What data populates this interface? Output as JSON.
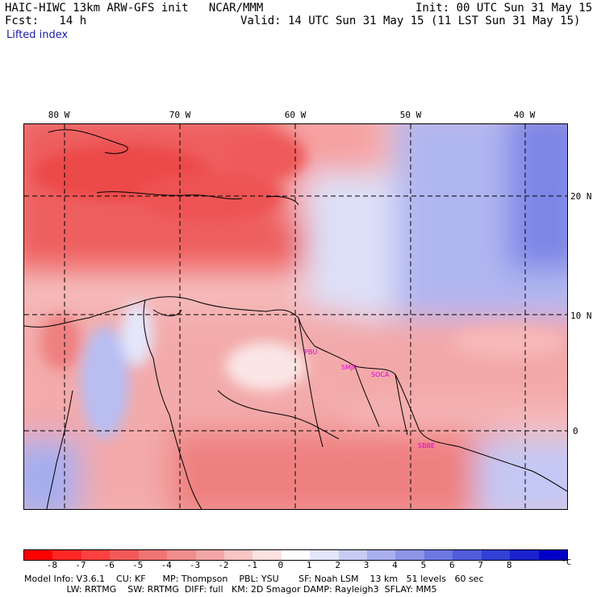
{
  "header": {
    "line1_left": "HAIC-HIWC 13km ARW-GFS init   NCAR/MMM",
    "line1_right": "Init: 00 UTC Sun 31 May 15",
    "line2_left": "Fcst:   14 h",
    "line2_right": "Valid: 14 UTC Sun 31 May 15 (11 LST Sun 31 May 15)",
    "field": "Lifted index"
  },
  "axes": {
    "lon_labels": [
      "80 W",
      "70 W",
      "60 W",
      "50 W",
      "40 W"
    ],
    "lat_labels": [
      "20 N",
      "10 N",
      "0"
    ]
  },
  "stations": [
    {
      "label": "PBU",
      "color": "#e000e0"
    },
    {
      "label": "SMJP",
      "color": "#e000e0"
    },
    {
      "label": "SOCA",
      "color": "#e000e0"
    },
    {
      "label": "SBBE",
      "color": "#e000e0"
    }
  ],
  "colorbar": {
    "labels": [
      "-8",
      "-7",
      "-6",
      "-5",
      "-4",
      "-3",
      "-2",
      "-1",
      "0",
      "1",
      "2",
      "3",
      "4",
      "5",
      "6",
      "7",
      "8"
    ],
    "unit": "°C",
    "colors": [
      "#ff0000",
      "#ff2626",
      "#ff4040",
      "#f25a5a",
      "#f07474",
      "#f08c8c",
      "#f3a6a6",
      "#f8c4c4",
      "#fde2e2",
      "#ffffff",
      "#e4e6fb",
      "#c8ccf5",
      "#aab0ee",
      "#8c94e8",
      "#6e78e2",
      "#505cdc",
      "#3240d6",
      "#1a22cc",
      "#0000c8"
    ]
  },
  "footer": {
    "line1": "Model Info: V3.6.1    CU: KF      MP: Thompson    PBL: YSU       SF: Noah LSM    13 km   51 levels   60 sec",
    "line2": "               LW: RRTMG    SW: RRTMG  DIFF: full   KM: 2D Smagor DAMP: Rayleigh3  SFLAY: MM5"
  }
}
